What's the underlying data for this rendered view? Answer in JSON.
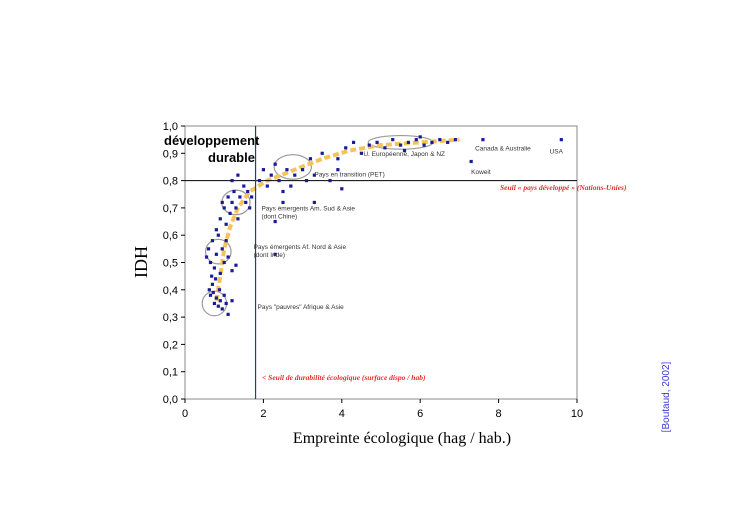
{
  "chart_data": {
    "type": "scatter",
    "xlabel": "Empreinte écologique (hag / hab.)",
    "ylabel": "IDH",
    "xlim": [
      0,
      10
    ],
    "ylim": [
      0,
      1
    ],
    "x_ticks": [
      "0",
      "2",
      "4",
      "6",
      "8",
      "10"
    ],
    "y_ticks": [
      "0,0",
      "0,1",
      "0,2",
      "0,3",
      "0,4",
      "0,5",
      "0,6",
      "0,7",
      "0,8",
      "0,9",
      "1,0"
    ],
    "grid": false,
    "legend": "none",
    "colors": {
      "points": "#1a1a9c",
      "trend": "#f6c25a",
      "ellipse": "#9a9a9a",
      "threshold_text": "#e03030",
      "source": "#3b3bd0"
    },
    "series": [
      {
        "points": [
          [
            0.62,
            0.4
          ],
          [
            0.65,
            0.38
          ],
          [
            0.7,
            0.42
          ],
          [
            0.75,
            0.35
          ],
          [
            0.8,
            0.37
          ],
          [
            0.85,
            0.34
          ],
          [
            0.9,
            0.36
          ],
          [
            0.95,
            0.33
          ],
          [
            1.0,
            0.38
          ],
          [
            1.05,
            0.35
          ],
          [
            1.1,
            0.31
          ],
          [
            1.2,
            0.36
          ],
          [
            0.72,
            0.39
          ],
          [
            0.78,
            0.44
          ],
          [
            0.88,
            0.4
          ],
          [
            0.55,
            0.52
          ],
          [
            0.6,
            0.55
          ],
          [
            0.65,
            0.5
          ],
          [
            0.7,
            0.58
          ],
          [
            0.75,
            0.48
          ],
          [
            0.8,
            0.53
          ],
          [
            0.85,
            0.6
          ],
          [
            0.9,
            0.46
          ],
          [
            0.95,
            0.55
          ],
          [
            1.0,
            0.5
          ],
          [
            1.05,
            0.58
          ],
          [
            1.1,
            0.52
          ],
          [
            1.2,
            0.47
          ],
          [
            1.3,
            0.49
          ],
          [
            0.68,
            0.45
          ],
          [
            0.8,
            0.62
          ],
          [
            0.9,
            0.66
          ],
          [
            1.0,
            0.7
          ],
          [
            1.1,
            0.74
          ],
          [
            1.15,
            0.68
          ],
          [
            1.2,
            0.72
          ],
          [
            1.25,
            0.76
          ],
          [
            1.3,
            0.7
          ],
          [
            1.35,
            0.66
          ],
          [
            1.4,
            0.74
          ],
          [
            1.5,
            0.78
          ],
          [
            1.55,
            0.72
          ],
          [
            1.6,
            0.76
          ],
          [
            1.65,
            0.7
          ],
          [
            1.7,
            0.74
          ],
          [
            1.2,
            0.8
          ],
          [
            1.35,
            0.82
          ],
          [
            0.95,
            0.72
          ],
          [
            1.05,
            0.64
          ],
          [
            1.9,
            0.8
          ],
          [
            2.0,
            0.84
          ],
          [
            2.1,
            0.78
          ],
          [
            2.2,
            0.82
          ],
          [
            2.3,
            0.86
          ],
          [
            2.4,
            0.8
          ],
          [
            2.5,
            0.76
          ],
          [
            2.6,
            0.84
          ],
          [
            2.7,
            0.78
          ],
          [
            2.8,
            0.82
          ],
          [
            3.0,
            0.84
          ],
          [
            3.1,
            0.8
          ],
          [
            3.2,
            0.88
          ],
          [
            3.3,
            0.82
          ],
          [
            3.5,
            0.9
          ],
          [
            3.7,
            0.8
          ],
          [
            3.9,
            0.84
          ],
          [
            4.0,
            0.77
          ],
          [
            2.3,
            0.65
          ],
          [
            2.5,
            0.72
          ],
          [
            3.3,
            0.72
          ],
          [
            3.9,
            0.88
          ],
          [
            4.1,
            0.92
          ],
          [
            4.3,
            0.94
          ],
          [
            4.5,
            0.9
          ],
          [
            4.7,
            0.93
          ],
          [
            4.9,
            0.94
          ],
          [
            5.1,
            0.92
          ],
          [
            5.3,
            0.95
          ],
          [
            5.5,
            0.93
          ],
          [
            5.7,
            0.94
          ],
          [
            5.9,
            0.95
          ],
          [
            6.1,
            0.93
          ],
          [
            6.3,
            0.94
          ],
          [
            6.5,
            0.95
          ],
          [
            6.7,
            0.94
          ],
          [
            6.9,
            0.95
          ],
          [
            5.6,
            0.91
          ],
          [
            6.0,
            0.96
          ],
          [
            7.3,
            0.87
          ],
          [
            7.6,
            0.95
          ],
          [
            9.6,
            0.95
          ],
          [
            2.3,
            0.53
          ]
        ]
      }
    ],
    "trend_curve": [
      [
        0.8,
        0.36
      ],
      [
        0.9,
        0.45
      ],
      [
        1.0,
        0.55
      ],
      [
        1.15,
        0.63
      ],
      [
        1.35,
        0.7
      ],
      [
        1.65,
        0.76
      ],
      [
        2.1,
        0.8
      ],
      [
        2.8,
        0.84
      ],
      [
        3.5,
        0.88
      ],
      [
        4.2,
        0.91
      ],
      [
        5.0,
        0.93
      ],
      [
        6.0,
        0.94
      ],
      [
        7.0,
        0.95
      ]
    ],
    "groups": [
      {
        "label": "Pays \"pauvres\" Afrique & Asie",
        "center": [
          0.75,
          0.35
        ],
        "rx": 0.62,
        "ry": 0.09
      },
      {
        "label": "Pays émergents Af. Nord & Asie",
        "label2": "(dont Inde)",
        "center": [
          0.85,
          0.54
        ],
        "rx": 0.65,
        "ry": 0.09
      },
      {
        "label": "Pays émergents Am. Sud & Asie",
        "label2": "(dont Chine)",
        "center": [
          1.3,
          0.72
        ],
        "rx": 0.72,
        "ry": 0.09
      },
      {
        "label": "Pays en transition (PET)",
        "center": [
          2.75,
          0.85
        ],
        "rx": 0.95,
        "ry": 0.09
      },
      {
        "label": "U. Européenne, Japon & NZ",
        "center": [
          5.5,
          0.94
        ],
        "rx": 1.65,
        "ry": 0.05
      }
    ],
    "point_labels": [
      {
        "text": "Canada & Australie",
        "at": [
          7.4,
          0.91
        ]
      },
      {
        "text": "USA",
        "at": [
          9.3,
          0.9
        ]
      },
      {
        "text": "Koweit",
        "at": [
          7.3,
          0.825
        ]
      }
    ],
    "h_threshold": {
      "y": 0.8,
      "label": "Seuil « pays développé » (Nations-Unies)"
    },
    "v_threshold": {
      "x": 1.8,
      "label": "< Seuil de durabilité écologique (surface dispo / hab)"
    },
    "zone_label": {
      "line1": "développement",
      "line2": "durable"
    }
  },
  "source": "[Boutaud, 2002]"
}
